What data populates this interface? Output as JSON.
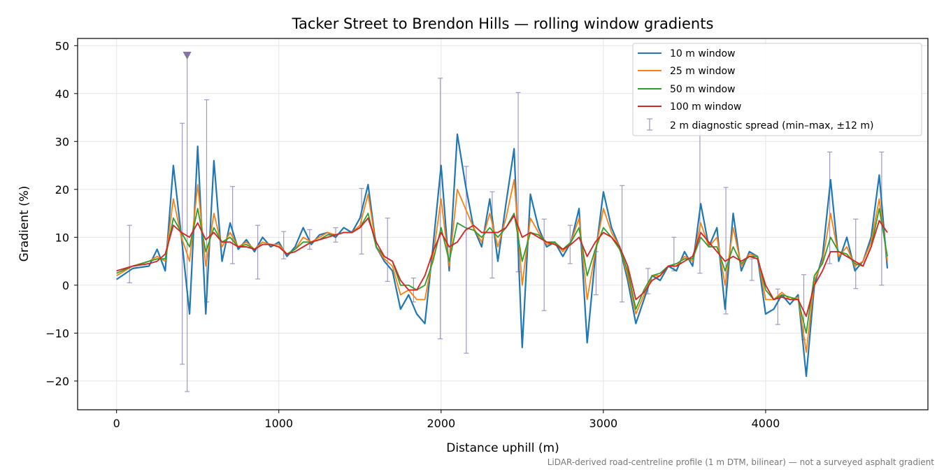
{
  "chart_data": {
    "type": "line",
    "title": "Tacker Street to Brendon Hills — rolling window gradients",
    "xlabel": "Distance uphill (m)",
    "ylabel": "Gradient (%)",
    "xlim": [
      -240,
      5000
    ],
    "ylim": [
      -26,
      51.5
    ],
    "xticks": [
      0,
      1000,
      2000,
      3000,
      4000
    ],
    "yticks": [
      -20,
      -10,
      0,
      10,
      20,
      30,
      40,
      50
    ],
    "xtick_labels": [
      "0",
      "1000",
      "2000",
      "3000",
      "4000"
    ],
    "ytick_labels": [
      "−20",
      "−10",
      "0",
      "10",
      "20",
      "30",
      "40",
      "50"
    ],
    "grid": true,
    "legend_position": "top-right",
    "footnote": "LiDAR-derived road-centreline profile (1 m DTM, bilinear) — not a surveyed asphalt gradient",
    "x": [
      0,
      100,
      200,
      250,
      300,
      350,
      400,
      450,
      500,
      550,
      600,
      650,
      700,
      750,
      800,
      850,
      900,
      950,
      1000,
      1050,
      1100,
      1150,
      1200,
      1250,
      1300,
      1350,
      1400,
      1450,
      1500,
      1550,
      1600,
      1650,
      1700,
      1750,
      1800,
      1850,
      1900,
      1950,
      2000,
      2050,
      2100,
      2150,
      2200,
      2250,
      2300,
      2350,
      2400,
      2450,
      2500,
      2550,
      2600,
      2650,
      2700,
      2750,
      2800,
      2850,
      2900,
      2950,
      3000,
      3050,
      3100,
      3150,
      3200,
      3250,
      3300,
      3350,
      3400,
      3450,
      3500,
      3550,
      3600,
      3650,
      3700,
      3750,
      3800,
      3850,
      3900,
      3950,
      4000,
      4050,
      4100,
      4150,
      4200,
      4250,
      4300,
      4350,
      4400,
      4450,
      4500,
      4550,
      4600,
      4650,
      4700,
      4750
    ],
    "series": [
      {
        "name": "10 m window",
        "color": "#1f77b4",
        "values": [
          1.2,
          3.5,
          4.0,
          7.5,
          3.0,
          25.0,
          10.0,
          -6.0,
          29.0,
          -6.0,
          26.0,
          5.0,
          13.0,
          7.5,
          9.5,
          7.0,
          10.0,
          8.0,
          9.0,
          6.0,
          8.0,
          12.0,
          8.5,
          10.5,
          11.0,
          10.0,
          12.0,
          11.0,
          14.0,
          21.0,
          8.0,
          5.0,
          3.0,
          -5.0,
          -2.0,
          -6.0,
          -8.0,
          8.0,
          25.0,
          3.0,
          31.5,
          21.0,
          12.0,
          8.0,
          18.0,
          5.0,
          17.0,
          28.5,
          -13.0,
          19.0,
          12.0,
          8.0,
          9.0,
          6.0,
          9.0,
          16.0,
          -12.0,
          6.0,
          19.5,
          12.0,
          8.0,
          1.0,
          -8.0,
          -3.0,
          2.0,
          1.0,
          4.0,
          3.0,
          7.0,
          4.0,
          17.0,
          8.0,
          12.0,
          -5.0,
          15.0,
          3.0,
          7.0,
          6.0,
          -6.0,
          -5.0,
          -2.0,
          -4.0,
          -2.0,
          -19.0,
          0.0,
          6.0,
          22.0,
          5.0,
          10.0,
          3.0,
          5.0,
          10.0,
          23.0,
          3.5
        ]
      },
      {
        "name": "25 m window",
        "color": "#ff7f0e",
        "values": [
          2.0,
          4.0,
          5.0,
          6.0,
          5.0,
          18.0,
          10.0,
          5.0,
          21.0,
          4.0,
          15.0,
          8.0,
          11.0,
          8.0,
          9.0,
          7.5,
          9.0,
          8.5,
          8.5,
          6.5,
          7.5,
          10.0,
          9.0,
          10.0,
          11.0,
          10.5,
          11.0,
          11.0,
          12.5,
          19.0,
          8.0,
          5.5,
          4.0,
          -2.0,
          -1.0,
          -3.0,
          -3.0,
          6.0,
          18.0,
          4.0,
          20.0,
          16.0,
          12.0,
          9.0,
          15.0,
          8.0,
          14.0,
          22.0,
          0.0,
          14.0,
          11.0,
          8.5,
          9.0,
          7.0,
          9.0,
          14.0,
          -3.0,
          7.0,
          16.0,
          11.0,
          8.0,
          2.0,
          -6.0,
          -2.0,
          2.0,
          2.0,
          4.0,
          4.0,
          6.0,
          5.0,
          13.0,
          8.0,
          10.0,
          0.0,
          12.0,
          4.0,
          6.5,
          6.0,
          -3.0,
          -3.0,
          -1.5,
          -3.0,
          -2.5,
          -14.0,
          1.0,
          5.0,
          15.0,
          6.0,
          8.0,
          4.0,
          5.0,
          9.0,
          18.0,
          5.0
        ]
      },
      {
        "name": "50 m window",
        "color": "#2ca02c",
        "values": [
          2.5,
          4.0,
          5.0,
          5.5,
          5.5,
          14.0,
          11.0,
          8.0,
          16.0,
          7.0,
          12.0,
          9.0,
          10.0,
          8.0,
          8.5,
          7.5,
          8.5,
          8.5,
          8.0,
          6.5,
          7.5,
          9.0,
          9.0,
          9.5,
          10.5,
          10.5,
          11.0,
          11.0,
          12.0,
          15.0,
          8.0,
          6.0,
          5.0,
          0.0,
          0.0,
          -1.0,
          0.0,
          5.0,
          12.0,
          5.0,
          13.0,
          12.0,
          11.5,
          10.0,
          12.0,
          10.0,
          12.0,
          15.0,
          5.0,
          11.0,
          10.5,
          9.0,
          9.0,
          7.5,
          9.0,
          12.0,
          2.0,
          7.5,
          12.0,
          10.0,
          7.5,
          3.0,
          -5.0,
          -1.0,
          2.0,
          2.5,
          4.0,
          4.5,
          5.5,
          5.5,
          10.0,
          8.0,
          8.0,
          3.0,
          8.0,
          4.5,
          6.0,
          6.0,
          -1.0,
          -3.0,
          -2.0,
          -2.5,
          -3.0,
          -10.0,
          2.0,
          4.5,
          10.0,
          7.0,
          6.5,
          4.5,
          4.0,
          8.0,
          16.0,
          6.0
        ]
      },
      {
        "name": "100 m window",
        "color": "#d62728",
        "values": [
          3.0,
          4.0,
          4.5,
          5.0,
          6.5,
          12.5,
          11.0,
          10.0,
          13.0,
          9.5,
          11.0,
          9.0,
          9.0,
          8.0,
          8.0,
          7.5,
          8.5,
          8.5,
          8.0,
          6.5,
          7.0,
          8.0,
          9.0,
          9.5,
          10.0,
          10.5,
          11.0,
          11.0,
          12.0,
          14.0,
          9.0,
          6.0,
          5.0,
          1.0,
          -1.0,
          -1.0,
          2.0,
          7.0,
          11.0,
          8.0,
          9.0,
          11.5,
          12.5,
          11.0,
          11.0,
          11.0,
          12.0,
          14.5,
          10.0,
          11.0,
          10.0,
          9.0,
          8.5,
          7.5,
          8.5,
          10.0,
          6.0,
          9.0,
          11.0,
          10.0,
          8.0,
          4.0,
          -3.0,
          -1.5,
          1.0,
          2.0,
          4.0,
          4.0,
          5.0,
          6.0,
          11.0,
          9.0,
          7.0,
          5.0,
          6.0,
          5.0,
          6.0,
          5.5,
          0.0,
          -3.0,
          -2.5,
          -3.0,
          -3.0,
          -6.5,
          0.0,
          3.0,
          7.0,
          7.0,
          6.0,
          5.0,
          4.0,
          8.0,
          13.5,
          11.0
        ]
      }
    ],
    "diagnostic_spread": {
      "name": "2 m diagnostic spread (min–max, ±12 m)",
      "color": "#a398c4",
      "marker_color": "#8472a8",
      "points": [
        {
          "x": 80,
          "min": 0.5,
          "max": 12.5
        },
        {
          "x": 405,
          "min": -16.5,
          "max": 33.8
        },
        {
          "x": 435,
          "min": -22.2,
          "max": 48
        },
        {
          "x": 555,
          "min": -3.5,
          "max": 38.7
        },
        {
          "x": 715,
          "min": 4.5,
          "max": 20.6
        },
        {
          "x": 870,
          "min": 1.3,
          "max": 12.5
        },
        {
          "x": 1030,
          "min": 5.5,
          "max": 11.2
        },
        {
          "x": 1190,
          "min": 7.5,
          "max": 11.6
        },
        {
          "x": 1350,
          "min": 9.0,
          "max": 12.0
        },
        {
          "x": 1510,
          "min": 6.5,
          "max": 20.2
        },
        {
          "x": 1670,
          "min": 0.8,
          "max": 14.0
        },
        {
          "x": 1830,
          "min": -3.5,
          "max": 1.5
        },
        {
          "x": 1995,
          "min": -11.2,
          "max": 43.2
        },
        {
          "x": 2155,
          "min": -14.2,
          "max": 24.8
        },
        {
          "x": 2315,
          "min": 1.5,
          "max": 19.5
        },
        {
          "x": 2475,
          "min": 2.8,
          "max": 40.2
        },
        {
          "x": 2635,
          "min": -5.3,
          "max": 13.8
        },
        {
          "x": 2795,
          "min": 4.5,
          "max": 12.5
        },
        {
          "x": 2955,
          "min": -2.0,
          "max": 7.0
        },
        {
          "x": 3115,
          "min": -3.5,
          "max": 20.8
        },
        {
          "x": 3275,
          "min": -1.8,
          "max": 3.5
        },
        {
          "x": 3435,
          "min": 3.0,
          "max": 10.0
        },
        {
          "x": 3595,
          "min": 2.5,
          "max": 33.0
        },
        {
          "x": 3755,
          "min": -6.0,
          "max": 20.4
        },
        {
          "x": 3915,
          "min": 1.0,
          "max": 5.5
        },
        {
          "x": 4075,
          "min": -8.2,
          "max": -0.8
        },
        {
          "x": 4235,
          "min": -11.4,
          "max": 2.2
        },
        {
          "x": 4395,
          "min": 4.5,
          "max": 27.8
        },
        {
          "x": 4555,
          "min": -0.7,
          "max": 13.8
        },
        {
          "x": 4715,
          "min": 0.0,
          "max": 27.8
        }
      ]
    }
  }
}
